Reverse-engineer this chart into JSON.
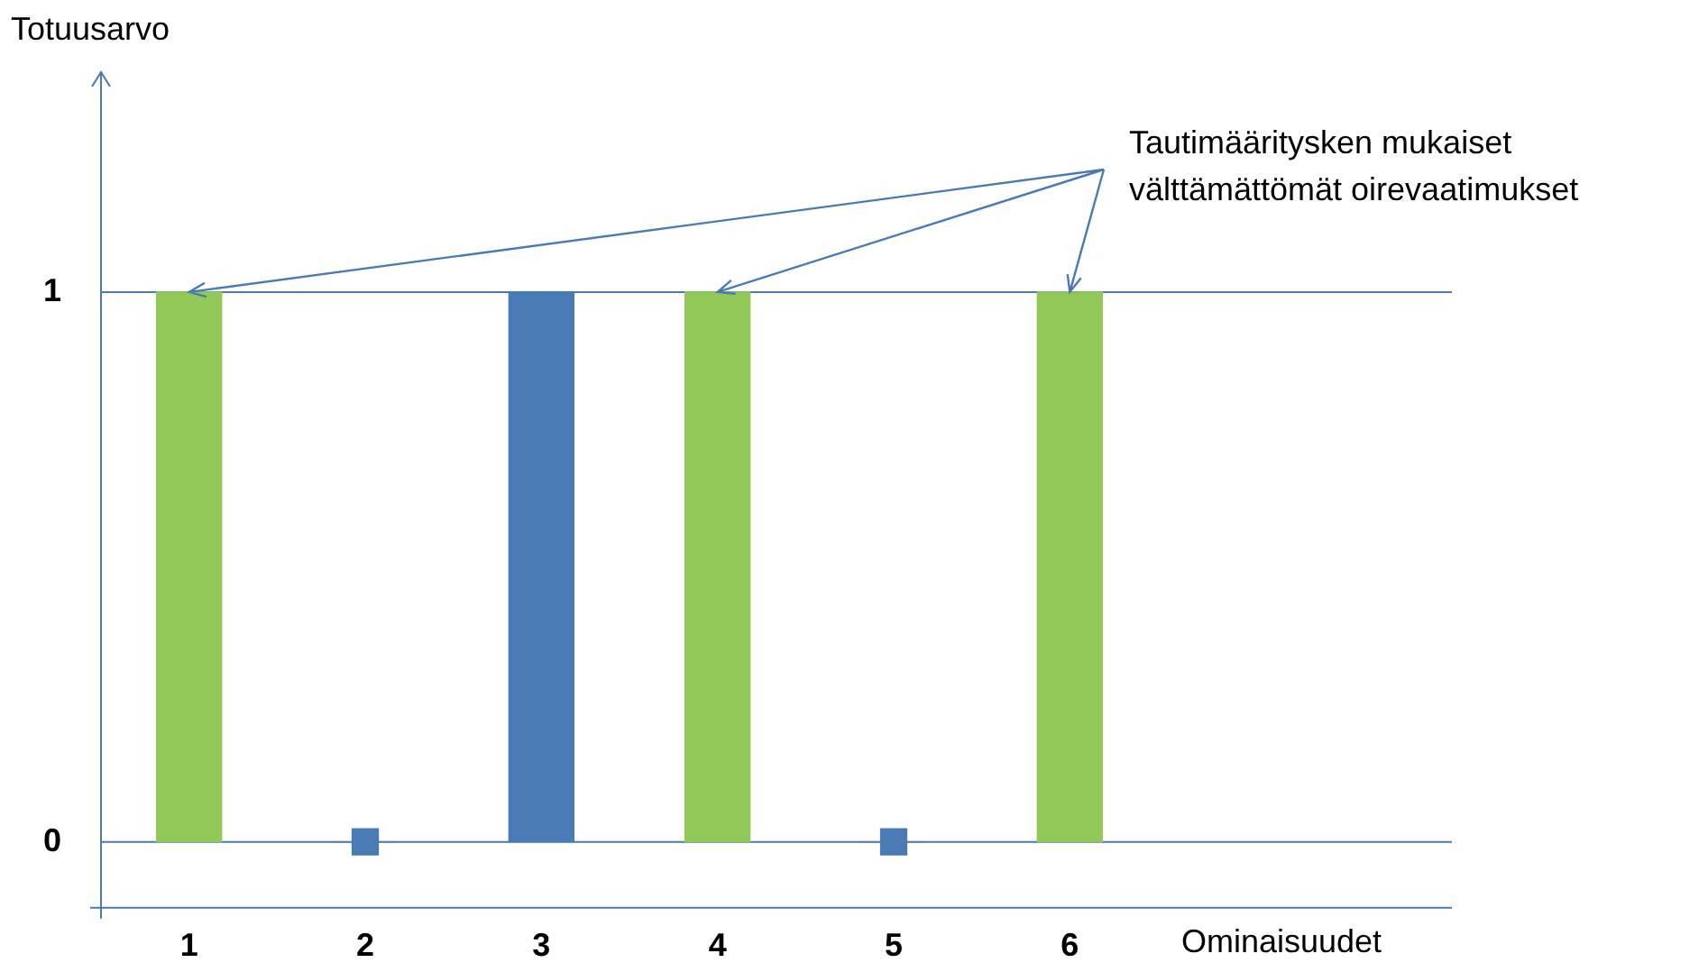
{
  "chart_data": {
    "type": "bar",
    "categories": [
      "1",
      "2",
      "3",
      "4",
      "5",
      "6"
    ],
    "series": [
      {
        "values": [
          1,
          0,
          1,
          1,
          0,
          1
        ],
        "colors": [
          "#92c857",
          "#4a7ab5",
          "#4a7ab5",
          "#92c857",
          "#4a7ab5",
          "#92c857"
        ]
      },
      {
        "type": "scatter",
        "x": [
          "2",
          "5"
        ],
        "values": [
          0,
          0
        ],
        "color": "#4a7ab5",
        "marker": "square"
      }
    ],
    "ylim": [
      -0.12,
      1.4
    ],
    "yticks": [
      {
        "value": 0,
        "label": "0"
      },
      {
        "value": 1,
        "label": "1"
      }
    ],
    "grid": "y",
    "xlabel": "Ominaisuudet",
    "ylabel": "Totuusarvo",
    "annotations": [
      {
        "text": "Tautimääritysken mukaiset välttämättömät oirevaatimukset",
        "x": "6",
        "y": 1
      }
    ]
  }
}
